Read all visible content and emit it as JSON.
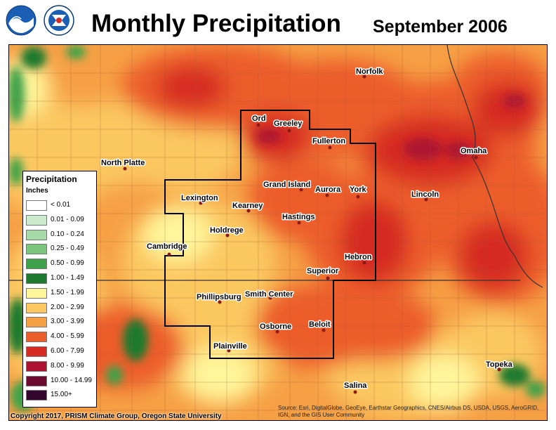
{
  "header": {
    "title": "Monthly Precipitation",
    "subtitle": "September 2006",
    "logos": [
      {
        "name": "noaa-logo",
        "text": "NOAA"
      },
      {
        "name": "nws-logo",
        "text": "NATIONAL WEATHER SERVICE"
      }
    ]
  },
  "legend": {
    "title": "Precipitation",
    "units": "Inches",
    "items": [
      {
        "label": "< 0.01",
        "color": "#ffffff"
      },
      {
        "label": "0.01 - 0.09",
        "color": "#cdeccd"
      },
      {
        "label": "0.10 - 0.24",
        "color": "#a6daa6"
      },
      {
        "label": "0.25 - 0.49",
        "color": "#7cc57c"
      },
      {
        "label": "0.50 - 0.99",
        "color": "#3fa24a"
      },
      {
        "label": "1.00 - 1.49",
        "color": "#1d7a2f"
      },
      {
        "label": "1.50 - 1.99",
        "color": "#fff59a"
      },
      {
        "label": "2.00 - 2.99",
        "color": "#fbc861"
      },
      {
        "label": "3.00 - 3.99",
        "color": "#f6a045"
      },
      {
        "label": "4.00 - 5.99",
        "color": "#ec5d2c"
      },
      {
        "label": "6.00 - 7.99",
        "color": "#d52b22"
      },
      {
        "label": "8.00 - 9.99",
        "color": "#ad1230"
      },
      {
        "label": "10.00 - 14.99",
        "color": "#6c0a2e"
      },
      {
        "label": "15.00+",
        "color": "#32062e"
      }
    ]
  },
  "cities": [
    {
      "name": "Norfolk"
    },
    {
      "name": "Ord"
    },
    {
      "name": "Greeley"
    },
    {
      "name": "Fullerton"
    },
    {
      "name": "Omaha"
    },
    {
      "name": "North Platte"
    },
    {
      "name": "Grand Island"
    },
    {
      "name": "Aurora"
    },
    {
      "name": "York"
    },
    {
      "name": "Lexington"
    },
    {
      "name": "Kearney"
    },
    {
      "name": "Lincoln"
    },
    {
      "name": "Hastings"
    },
    {
      "name": "Holdrege"
    },
    {
      "name": "Cambridge"
    },
    {
      "name": "Hebron"
    },
    {
      "name": "Superior"
    },
    {
      "name": "Phillipsburg"
    },
    {
      "name": "Smith Center"
    },
    {
      "name": "Beloit"
    },
    {
      "name": "Osborne"
    },
    {
      "name": "Plainville"
    },
    {
      "name": "Topeka"
    },
    {
      "name": "Salina"
    }
  ],
  "footer": {
    "copyright": "Copyright 2017, PRISM Climate Group, Oregon State University",
    "source": "Source: Esri, DigitalGlobe, GeoEye, Earthstar Geographics, CNES/Airbus DS, USDA, USGS, AeroGRID, IGN, and the GIS User Community"
  }
}
